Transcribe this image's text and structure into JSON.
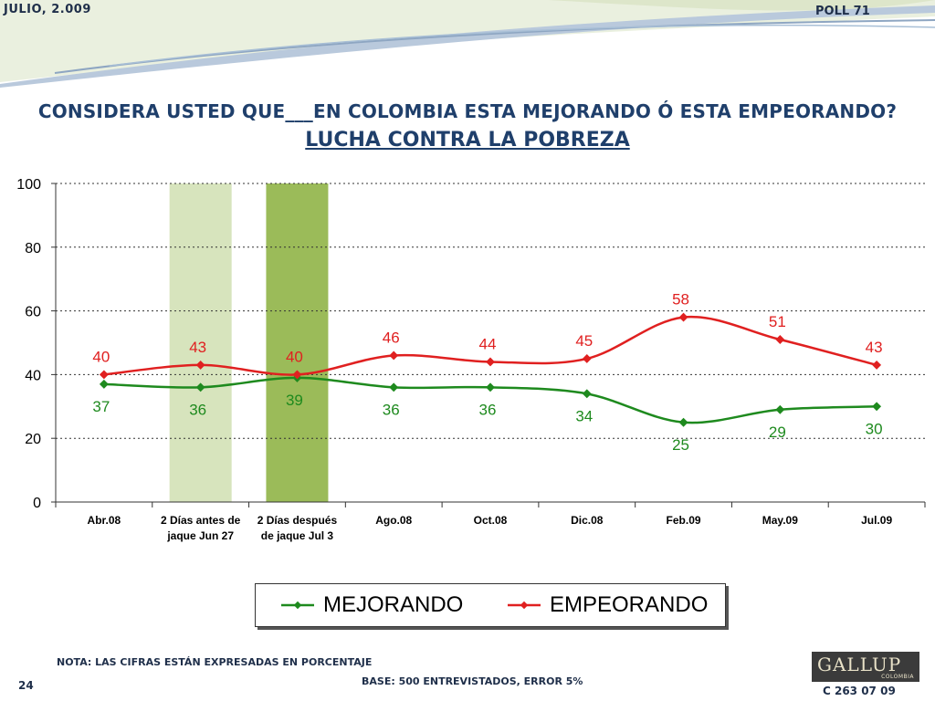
{
  "header": {
    "date": "JULIO, 2.009",
    "poll": "POLL 71"
  },
  "question": "CONSIDERA USTED QUE___EN COLOMBIA ESTA MEJORANDO Ó ESTA EMPEORANDO?",
  "subtitle": "LUCHA CONTRA LA POBREZA",
  "colors": {
    "mejorando": "#1e8a1e",
    "empeorando": "#e02020",
    "band_light": "#d7e4bd",
    "band_dark": "#9bbb59",
    "title": "#1f3f6b"
  },
  "chart_data": {
    "type": "line",
    "categories": [
      "Abr.08",
      "2 Días antes de jaque Jun 27",
      "2 Días después de jaque Jul 3",
      "Ago.08",
      "Oct.08",
      "Dic.08",
      "Feb.09",
      "May.09",
      "Jul.09"
    ],
    "category_lines": [
      [
        "Abr.08"
      ],
      [
        "2 Días antes de",
        "jaque Jun 27"
      ],
      [
        "2 Días después",
        "de jaque Jul 3"
      ],
      [
        "Ago.08"
      ],
      [
        "Oct.08"
      ],
      [
        "Dic.08"
      ],
      [
        "Feb.09"
      ],
      [
        "May.09"
      ],
      [
        "Jul.09"
      ]
    ],
    "series": [
      {
        "name": "MEJORANDO",
        "values": [
          37,
          36,
          39,
          36,
          36,
          34,
          25,
          29,
          30
        ]
      },
      {
        "name": "EMPEORANDO",
        "values": [
          40,
          43,
          40,
          46,
          44,
          45,
          58,
          51,
          43
        ]
      }
    ],
    "highlight_categories": [
      1,
      2
    ],
    "ylim": [
      0,
      100
    ],
    "yticks": [
      0,
      20,
      40,
      60,
      80,
      100
    ],
    "grid": true,
    "legend": "bottom",
    "smooth": true
  },
  "legend": {
    "mejorando": "MEJORANDO",
    "empeorando": "EMPEORANDO"
  },
  "footer": {
    "note": "NOTA: LAS CIFRAS ESTÁN EXPRESADAS EN PORCENTAJE",
    "base": "BASE: 500 ENTREVISTADOS, ERROR 5%",
    "slide_number": "24",
    "logo": "GALLUP",
    "logo_sub": "COLOMBIA",
    "code": "C 263 07 09"
  }
}
